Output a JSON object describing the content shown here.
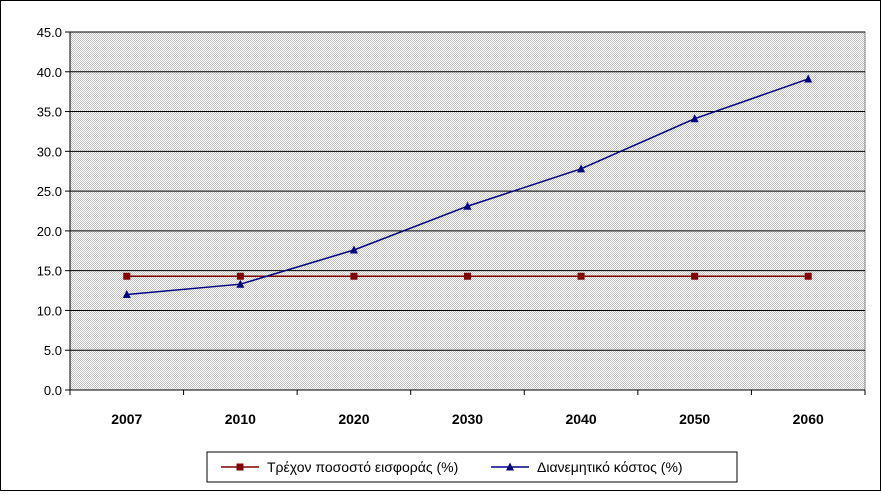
{
  "chart_data": {
    "type": "line",
    "categories": [
      "2007",
      "2010",
      "2020",
      "2030",
      "2040",
      "2050",
      "2060"
    ],
    "series": [
      {
        "name": "Τρέχον ποσοστό εισφοράς (%)",
        "values": [
          14.3,
          14.3,
          14.3,
          14.3,
          14.3,
          14.3,
          14.3
        ],
        "color": "#800000",
        "marker": "square"
      },
      {
        "name": "Διανεμητικό κόστος (%)",
        "values": [
          12.0,
          13.3,
          17.6,
          23.1,
          27.8,
          34.1,
          39.1
        ],
        "color": "#000080",
        "marker": "triangle"
      }
    ],
    "ylim": [
      0,
      45
    ],
    "yticks": [
      "0.0",
      "5.0",
      "10.0",
      "15.0",
      "20.0",
      "25.0",
      "30.0",
      "35.0",
      "40.0",
      "45.0"
    ],
    "grid": true,
    "legend_position": "bottom",
    "plot_background": "#c0c0c0"
  }
}
